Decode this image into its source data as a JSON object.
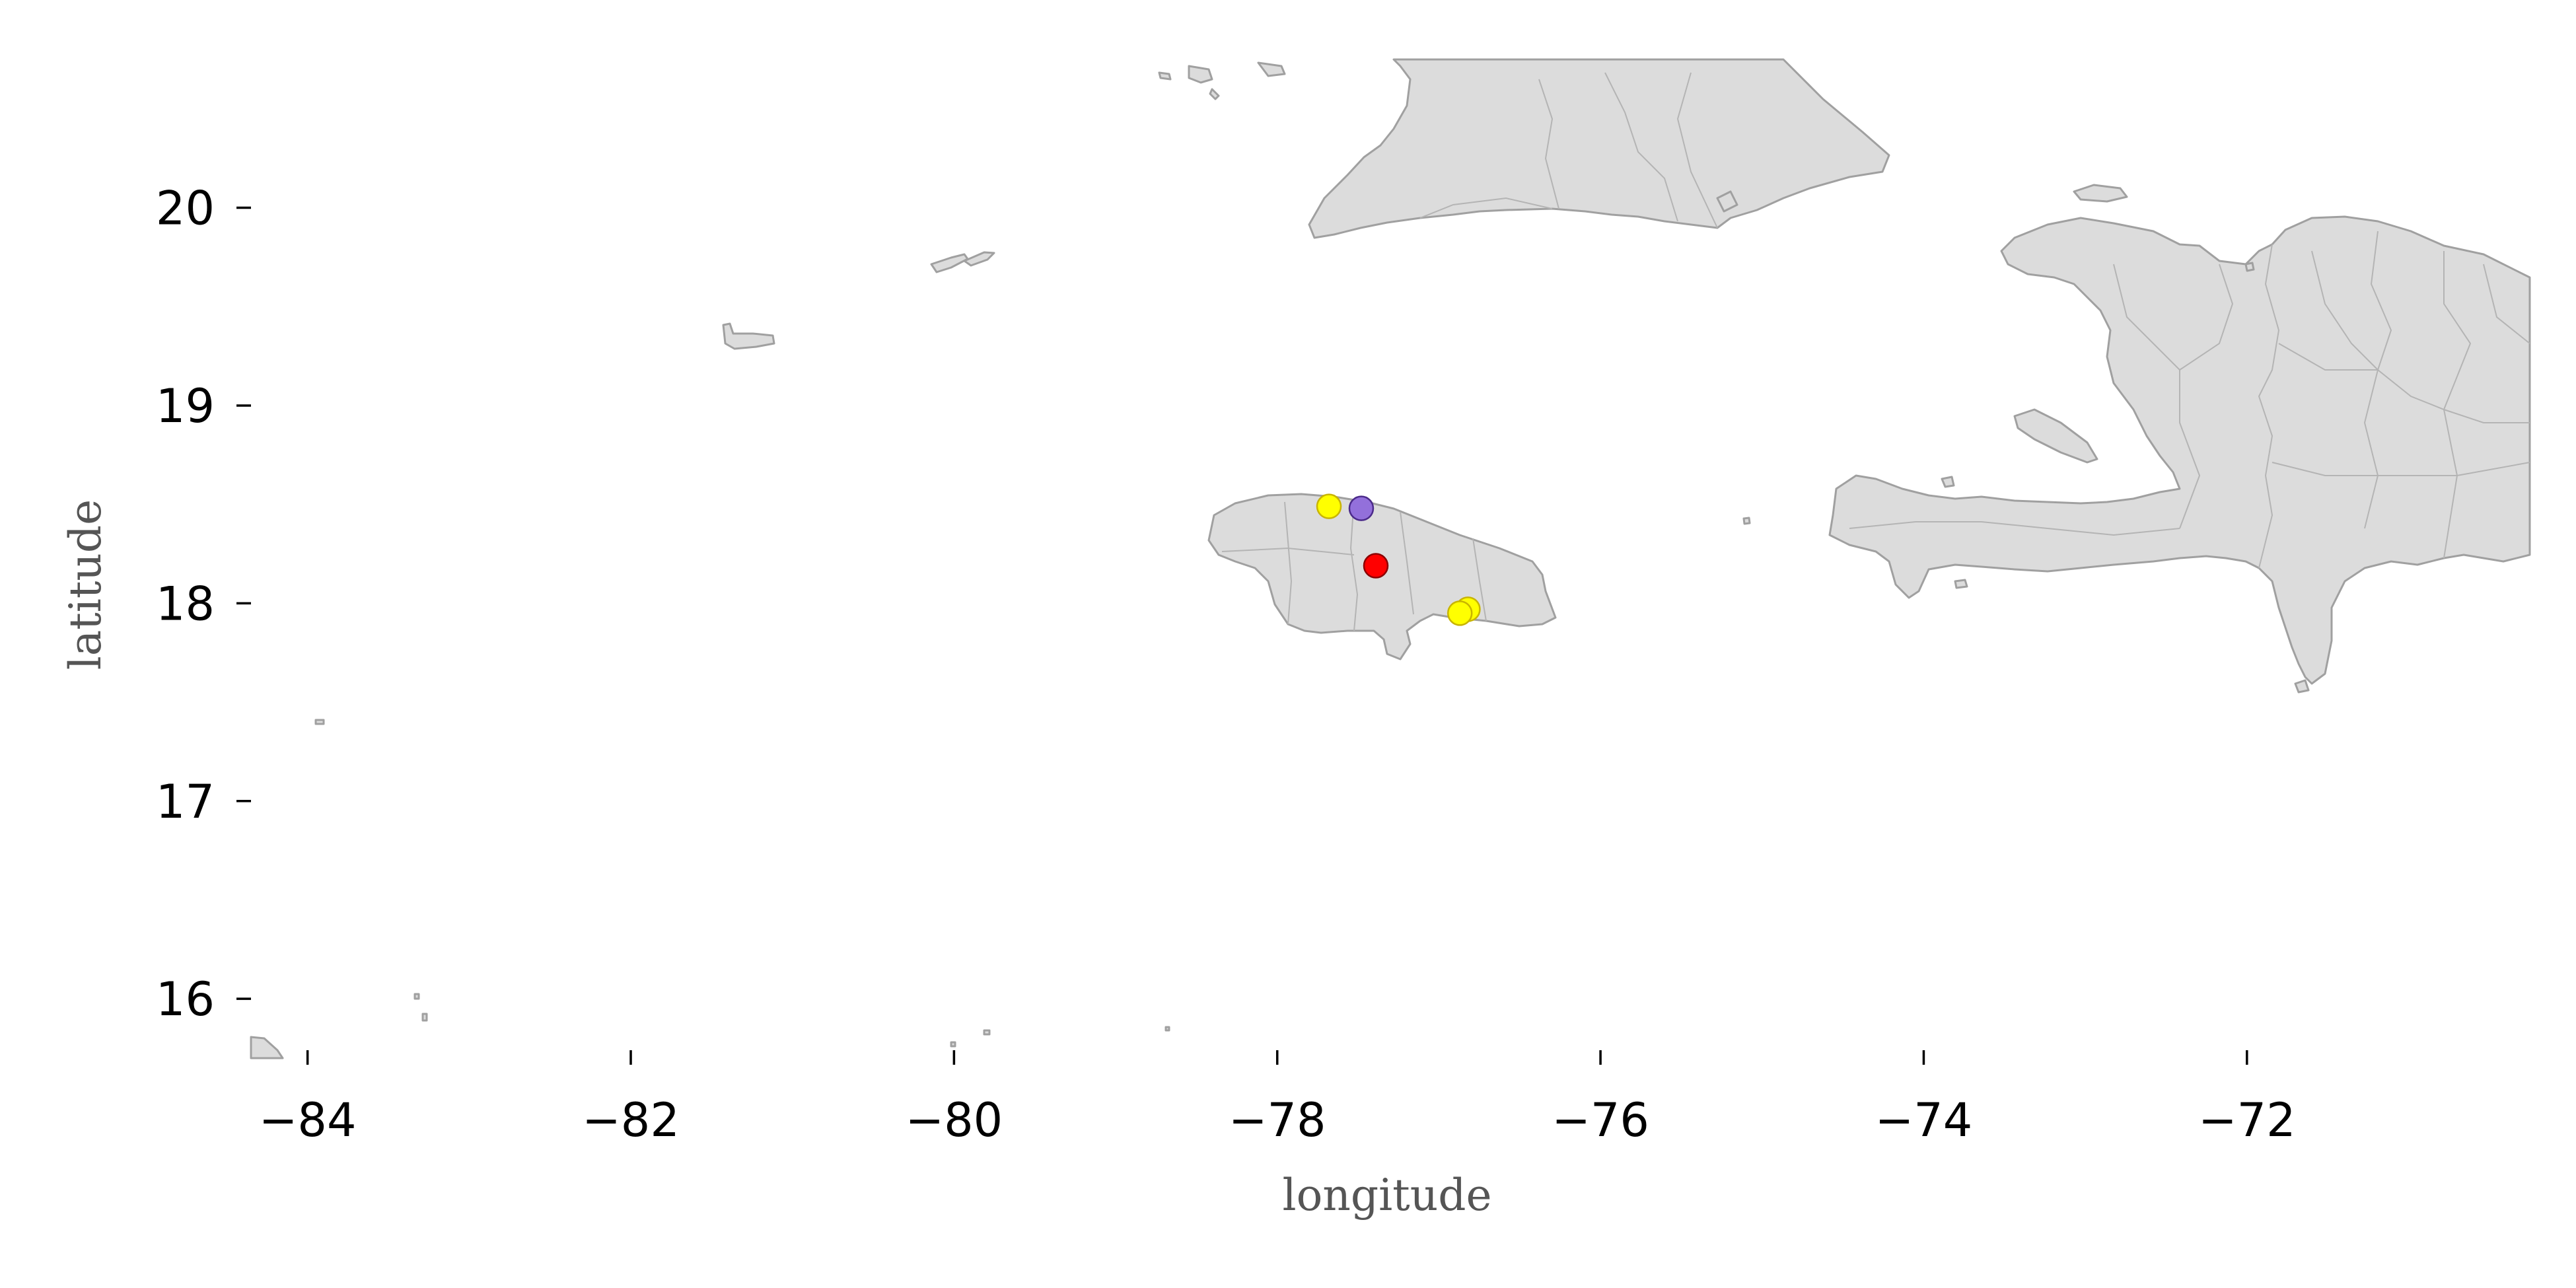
{
  "chart_data": {
    "type": "scatter",
    "xlabel": "longitude",
    "ylabel": "latitude",
    "xlim": [
      -84.35,
      -70.25
    ],
    "ylim": [
      15.7,
      20.75
    ],
    "xticks": [
      -84,
      -82,
      -80,
      -78,
      -76,
      -74,
      -72
    ],
    "yticks": [
      16,
      17,
      18,
      19,
      20
    ],
    "points": [
      {
        "lon": -77.68,
        "lat": 18.49,
        "color": "#ffff00",
        "edge": "#c8b400"
      },
      {
        "lon": -77.48,
        "lat": 18.48,
        "color": "#9370db",
        "edge": "#4b2a8a"
      },
      {
        "lon": -77.39,
        "lat": 18.19,
        "color": "#ff0000",
        "edge": "#8b0000"
      },
      {
        "lon": -76.82,
        "lat": 17.97,
        "color": "#ffff00",
        "edge": "#c8b400"
      },
      {
        "lon": -76.87,
        "lat": 17.95,
        "color": "#ffff00",
        "edge": "#c8b400"
      }
    ]
  },
  "colors": {
    "land_fill": "#dcdcdc",
    "land_edge": "#a0a0a0"
  }
}
